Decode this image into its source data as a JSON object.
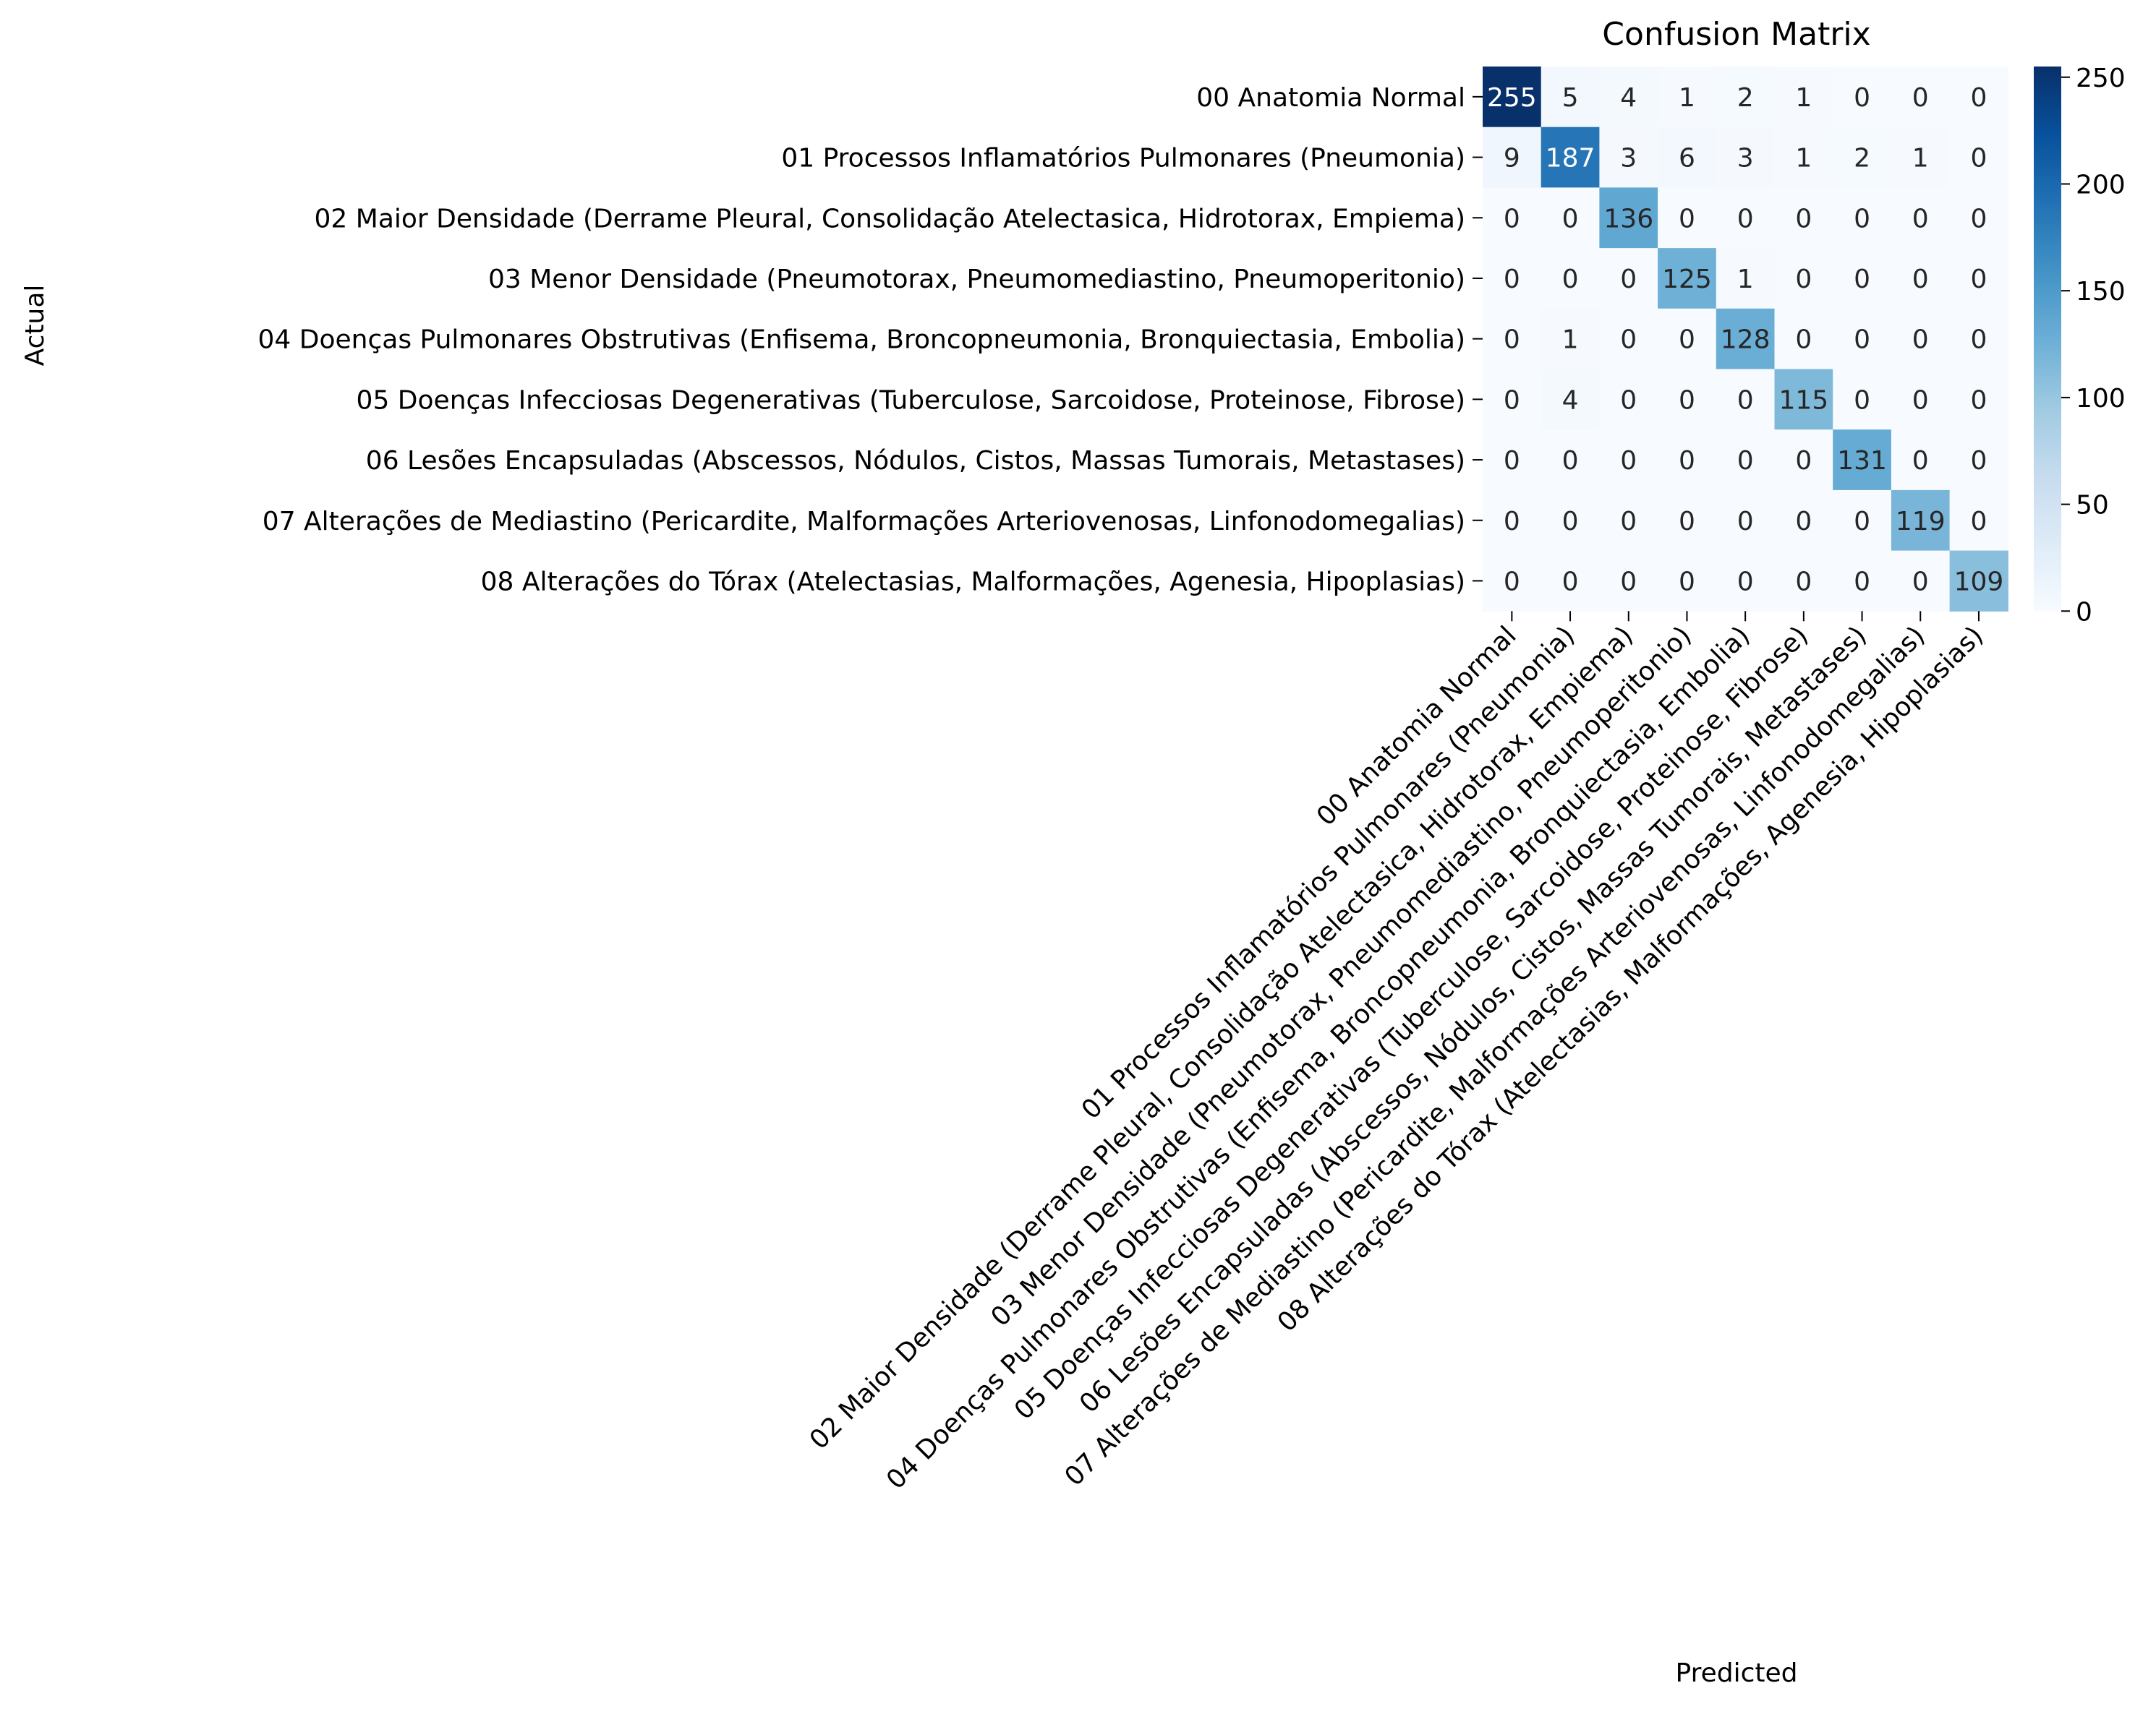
{
  "chart_data": {
    "type": "heatmap",
    "title": "Confusion Matrix",
    "xlabel": "Predicted",
    "ylabel": "Actual",
    "labels": [
      "00 Anatomia Normal",
      "01 Processos Inflamatórios Pulmonares (Pneumonia)",
      "02 Maior Densidade (Derrame Pleural, Consolidação Atelectasica, Hidrotorax, Empiema)",
      "03 Menor Densidade (Pneumotorax, Pneumomediastino, Pneumoperitonio)",
      "04 Doenças Pulmonares Obstrutivas (Enfisema, Broncopneumonia, Bronquiectasia, Embolia)",
      "05 Doenças Infecciosas Degenerativas (Tuberculose, Sarcoidose, Proteinose, Fibrose)",
      "06 Lesões Encapsuladas (Abscessos, Nódulos, Cistos, Massas Tumorais, Metastases)",
      "07 Alterações de Mediastino (Pericardite, Malformações Arteriovenosas, Linfonodomegalias)",
      "08 Alterações do Tórax (Atelectasias, Malformações, Agenesia, Hipoplasias)"
    ],
    "matrix": [
      [
        255,
        5,
        4,
        1,
        2,
        1,
        0,
        0,
        0
      ],
      [
        9,
        187,
        3,
        6,
        3,
        1,
        2,
        1,
        0
      ],
      [
        0,
        0,
        136,
        0,
        0,
        0,
        0,
        0,
        0
      ],
      [
        0,
        0,
        0,
        125,
        1,
        0,
        0,
        0,
        0
      ],
      [
        0,
        1,
        0,
        0,
        128,
        0,
        0,
        0,
        0
      ],
      [
        0,
        4,
        0,
        0,
        0,
        115,
        0,
        0,
        0
      ],
      [
        0,
        0,
        0,
        0,
        0,
        0,
        131,
        0,
        0
      ],
      [
        0,
        0,
        0,
        0,
        0,
        0,
        0,
        119,
        0
      ],
      [
        0,
        0,
        0,
        0,
        0,
        0,
        0,
        0,
        109
      ]
    ],
    "colormap": "Blues",
    "colors": [
      "#f7fbff",
      "#deebf7",
      "#c6dbef",
      "#9ecae1",
      "#6baed6",
      "#4292c6",
      "#2171b5",
      "#08519c",
      "#08306b"
    ],
    "value_range": [
      0,
      255
    ],
    "colorbar_ticks": [
      0,
      50,
      100,
      150,
      200,
      250
    ],
    "grid": false
  }
}
